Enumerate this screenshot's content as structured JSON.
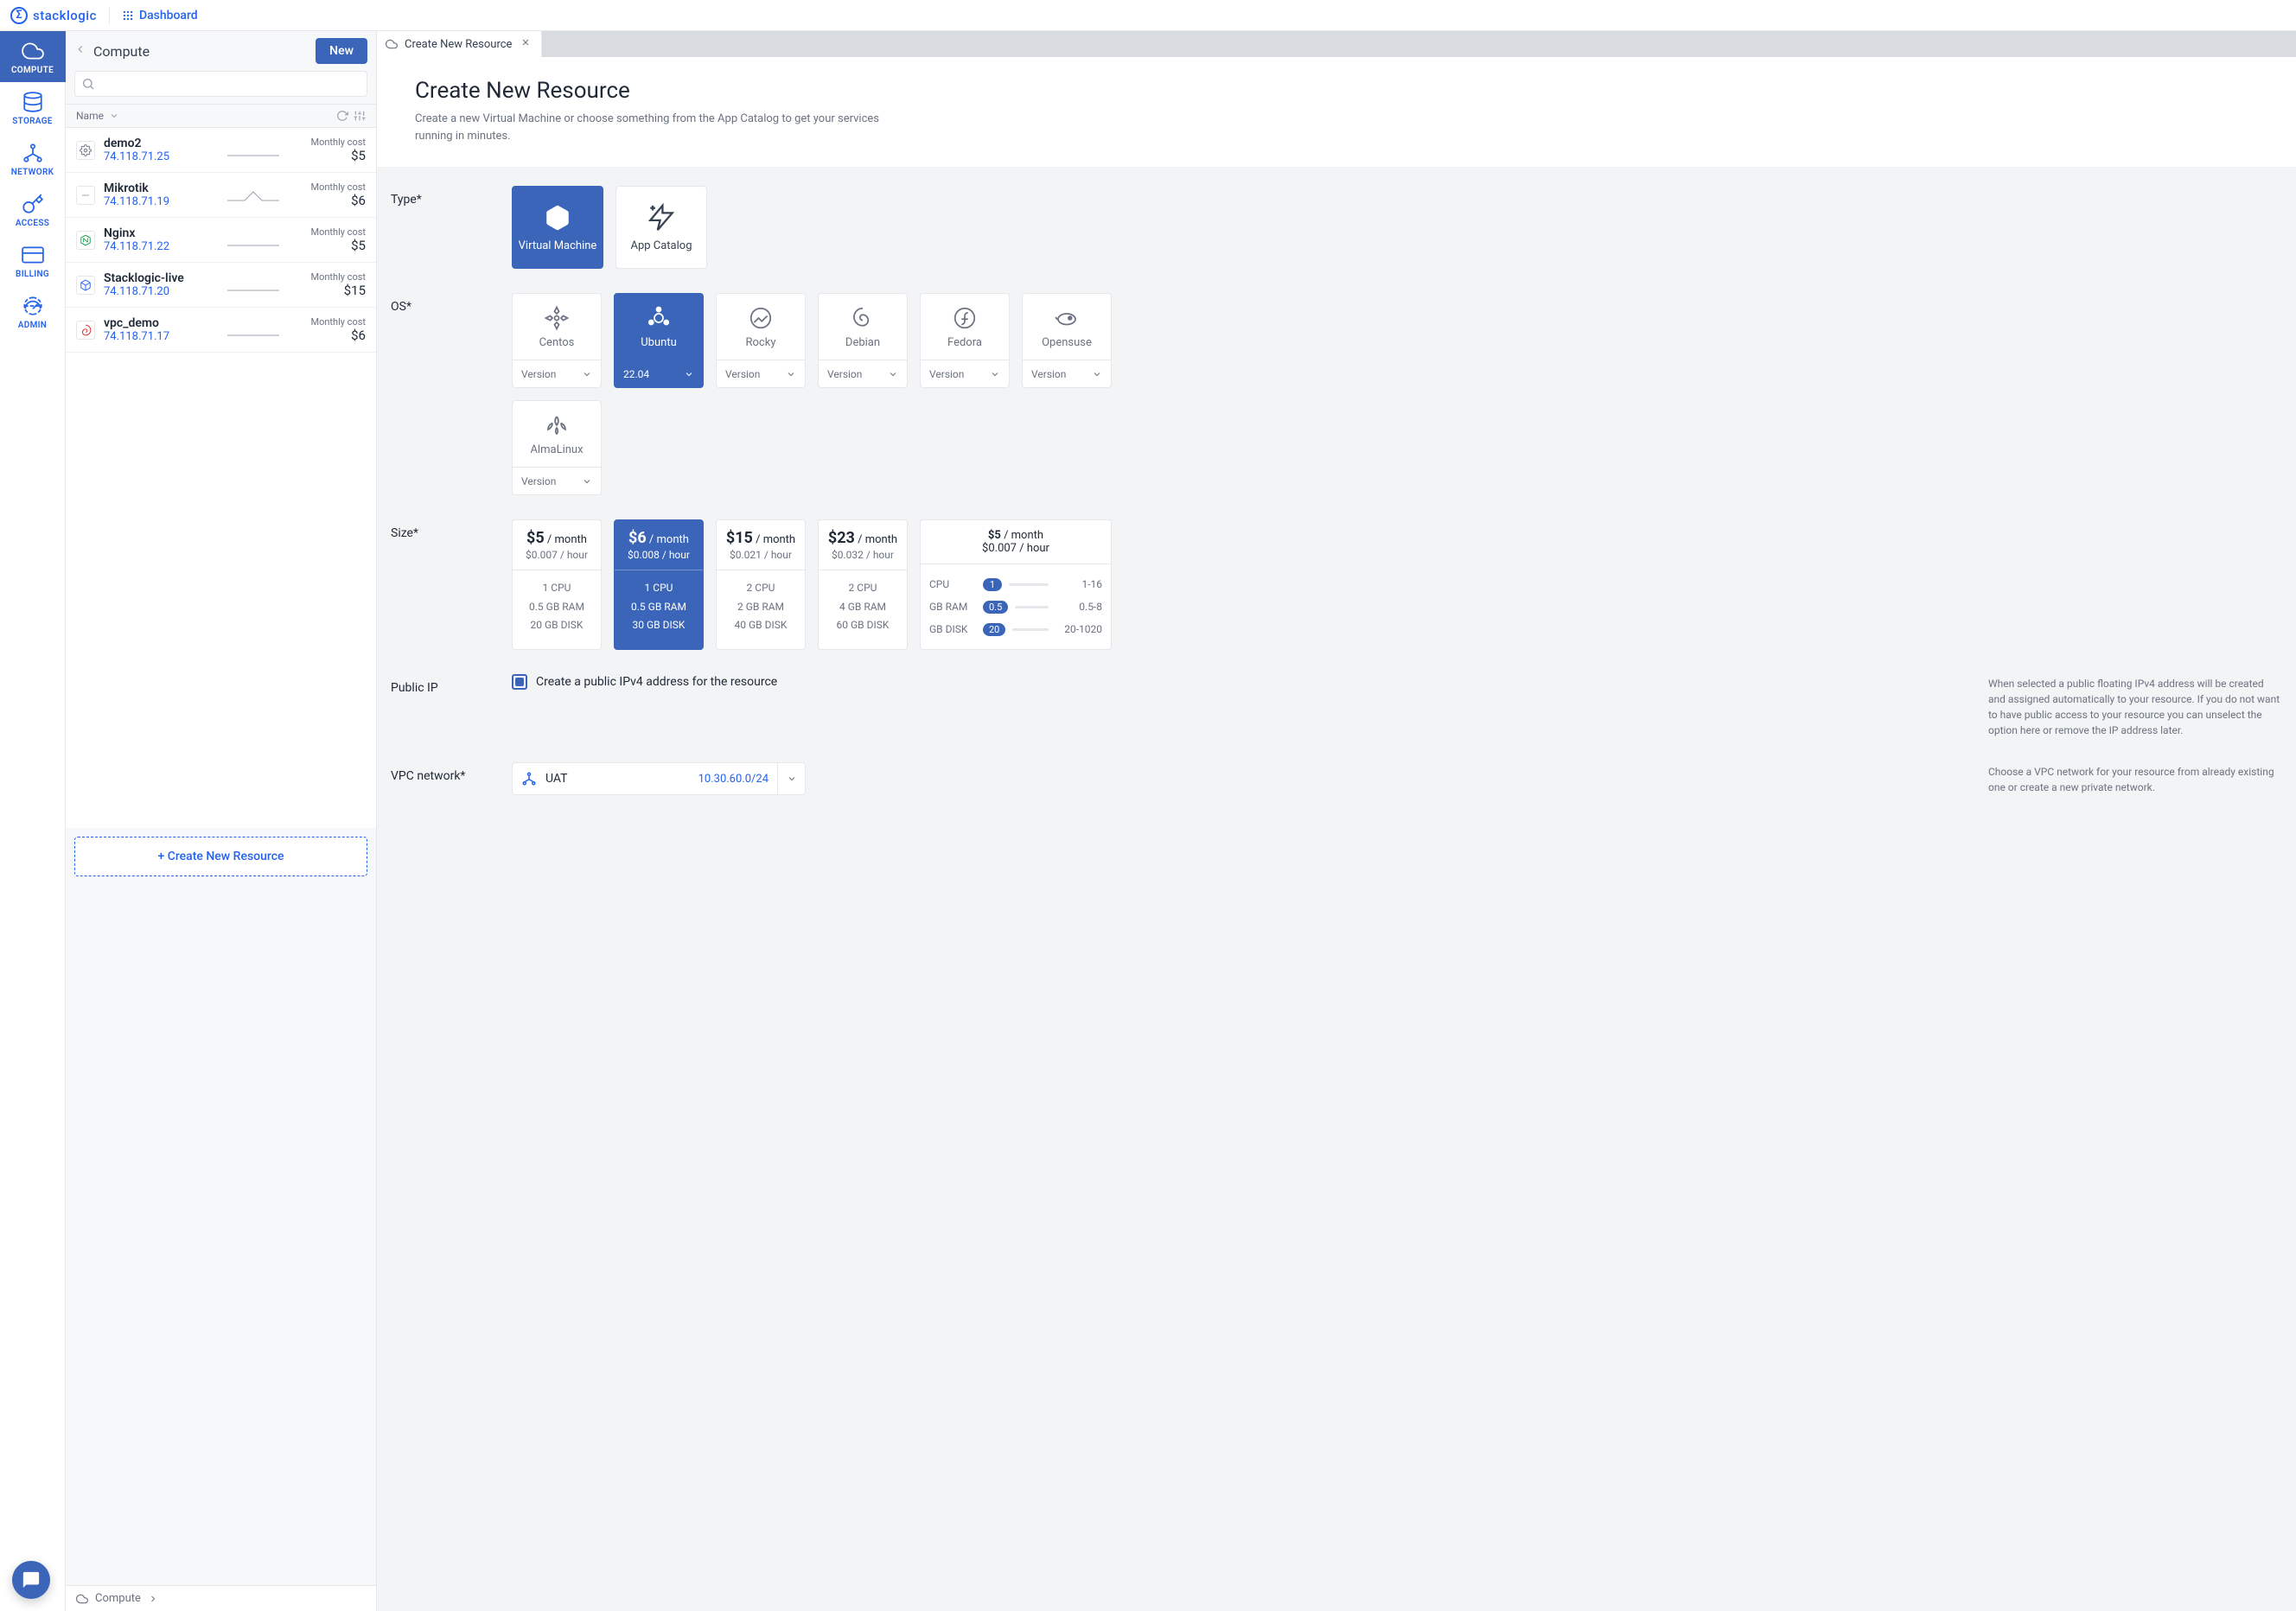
{
  "brand": {
    "name": "stacklogic",
    "logo_glyph": "Σ"
  },
  "topbar": {
    "dashboard": "Dashboard"
  },
  "rail": [
    {
      "key": "compute",
      "label": "COMPUTE",
      "active": true
    },
    {
      "key": "storage",
      "label": "STORAGE",
      "active": false
    },
    {
      "key": "network",
      "label": "NETWORK",
      "active": false
    },
    {
      "key": "access",
      "label": "ACCESS",
      "active": false
    },
    {
      "key": "billing",
      "label": "BILLING",
      "active": false
    },
    {
      "key": "admin",
      "label": "ADMIN",
      "active": false
    }
  ],
  "panel": {
    "title": "Compute",
    "new_btn": "New",
    "search_placeholder": "",
    "col_name": "Name",
    "create_label": "+ Create New Resource",
    "cost_label": "Monthly cost",
    "rows": [
      {
        "name": "demo2",
        "ip": "74.118.71.25",
        "cost": "$5",
        "icon": "gear",
        "icon_color": "#6b7280"
      },
      {
        "name": "Mikrotik",
        "ip": "74.118.71.19",
        "cost": "$6",
        "icon": "dash",
        "icon_color": "#9ca3af"
      },
      {
        "name": "Nginx",
        "ip": "74.118.71.22",
        "cost": "$5",
        "icon": "nginx",
        "icon_color": "#16a34a"
      },
      {
        "name": "Stacklogic-live",
        "ip": "74.118.71.20",
        "cost": "$15",
        "icon": "cube",
        "icon_color": "#2563eb"
      },
      {
        "name": "vpc_demo",
        "ip": "74.118.71.17",
        "cost": "$6",
        "icon": "swirl",
        "icon_color": "#dc2626"
      }
    ]
  },
  "tab": {
    "title": "Create New Resource"
  },
  "hero": {
    "title": "Create New Resource",
    "sub": "Create a new Virtual Machine or choose something from the App Catalog to get your services running in minutes."
  },
  "labels": {
    "type": "Type*",
    "os": "OS*",
    "size": "Size*",
    "public_ip": "Public IP",
    "vpc": "VPC network*",
    "version_ph": "Version"
  },
  "types": [
    {
      "key": "vm",
      "label": "Virtual Machine",
      "selected": true
    },
    {
      "key": "catalog",
      "label": "App Catalog",
      "selected": false
    }
  ],
  "os": [
    {
      "key": "centos",
      "label": "Centos",
      "version": "Version",
      "selected": false
    },
    {
      "key": "ubuntu",
      "label": "Ubuntu",
      "version": "22.04",
      "selected": true
    },
    {
      "key": "rocky",
      "label": "Rocky",
      "version": "Version",
      "selected": false
    },
    {
      "key": "debian",
      "label": "Debian",
      "version": "Version",
      "selected": false
    },
    {
      "key": "fedora",
      "label": "Fedora",
      "version": "Version",
      "selected": false
    },
    {
      "key": "opensuse",
      "label": "Opensuse",
      "version": "Version",
      "selected": false
    },
    {
      "key": "alma",
      "label": "AlmaLinux",
      "version": "Version",
      "selected": false
    }
  ],
  "sizes": [
    {
      "price": "$5",
      "per": " / month",
      "hour": "$0.007 / hour",
      "cpu": "1 CPU",
      "ram": "0.5 GB RAM",
      "disk": "20 GB DISK",
      "selected": false
    },
    {
      "price": "$6",
      "per": " / month",
      "hour": "$0.008 / hour",
      "cpu": "1 CPU",
      "ram": "0.5 GB RAM",
      "disk": "30 GB DISK",
      "selected": true
    },
    {
      "price": "$15",
      "per": " / month",
      "hour": "$0.021 / hour",
      "cpu": "2 CPU",
      "ram": "2 GB RAM",
      "disk": "40 GB DISK",
      "selected": false
    },
    {
      "price": "$23",
      "per": " / month",
      "hour": "$0.032 / hour",
      "cpu": "2 CPU",
      "ram": "4 GB RAM",
      "disk": "60 GB DISK",
      "selected": false
    }
  ],
  "size_custom": {
    "price": "$5",
    "per": " / month",
    "hour": "$0.007 / hour",
    "rows": [
      {
        "k": "CPU",
        "v": "1",
        "r": "1-16"
      },
      {
        "k": "GB RAM",
        "v": "0.5",
        "r": "0.5-8"
      },
      {
        "k": "GB DISK",
        "v": "20",
        "r": "20-1020"
      }
    ]
  },
  "public_ip": {
    "checked": true,
    "label": "Create a public IPv4 address for the resource",
    "help": "When selected a public floating IPv4 address will be created and assigned automatically to your resource. If you do not want to have public access to your resource you can unselect the option here or remove the IP address later."
  },
  "vpc": {
    "value": "UAT",
    "cidr": "10.30.60.0/24",
    "help": "Choose a VPC network for your resource from already existing one or create a new private network."
  },
  "footer": {
    "crumb": "Compute"
  }
}
